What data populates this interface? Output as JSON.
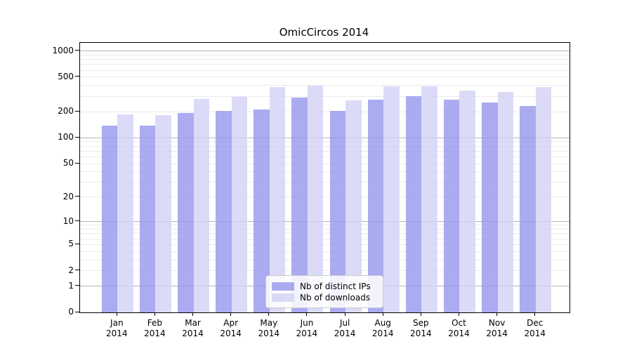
{
  "chart_data": {
    "type": "bar",
    "title": "OmicCircos 2014",
    "categories": [
      "Jan 2014",
      "Feb 2014",
      "Mar 2014",
      "Apr 2014",
      "May 2014",
      "Jun 2014",
      "Jul 2014",
      "Aug 2014",
      "Sep 2014",
      "Oct 2014",
      "Nov 2014",
      "Dec 2014"
    ],
    "x_tick_months": [
      "Jan",
      "Feb",
      "Mar",
      "Apr",
      "May",
      "Jun",
      "Jul",
      "Aug",
      "Sep",
      "Oct",
      "Nov",
      "Dec"
    ],
    "x_tick_year": "2014",
    "series": [
      {
        "name": "Nb of distinct IPs",
        "color": "#9696ed",
        "opacity": 0.8,
        "values": [
          138,
          138,
          195,
          206,
          212,
          290,
          206,
          277,
          305,
          277,
          256,
          235
        ]
      },
      {
        "name": "Nb of downloads",
        "color": "#d2d2f6",
        "opacity": 0.8,
        "values": [
          186,
          184,
          281,
          299,
          383,
          403,
          270,
          391,
          396,
          352,
          338,
          385
        ]
      }
    ],
    "y_ticks": [
      0,
      1,
      2,
      5,
      10,
      20,
      50,
      100,
      200,
      500,
      1000
    ],
    "y_scale": "log10(value+1)",
    "ylim": [
      0,
      1240
    ],
    "grid": true,
    "legend_position": "lower center",
    "axis_color": "#000000",
    "major_grid_color": "#b5b5b5",
    "minor_grid_color": "#ebebeb"
  }
}
